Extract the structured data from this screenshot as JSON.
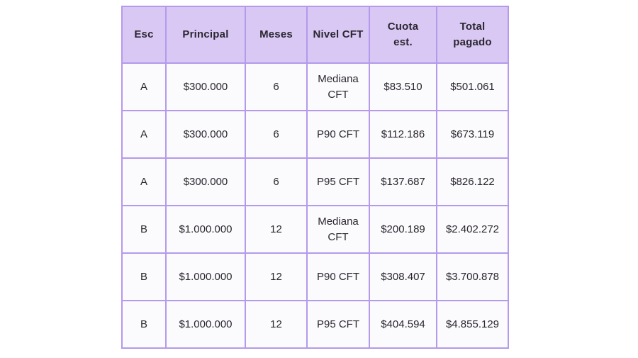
{
  "colors": {
    "header_bg": "#d9c7f4",
    "border": "#b49aec",
    "cell_bg": "#fbfafc",
    "text": "#2b2730",
    "page_bg": "#ffffff"
  },
  "table": {
    "display_headers": [
      "Esc",
      "Principal",
      "Meses",
      "Nivel CFT",
      "Cuota\nest.",
      "Total\npagado"
    ]
  },
  "chart_data": {
    "type": "table",
    "columns": [
      "Esc",
      "Principal",
      "Meses",
      "Nivel CFT",
      "Cuota est.",
      "Total pagado"
    ],
    "rows": [
      [
        "A",
        "$300.000",
        "6",
        "Mediana CFT",
        "$83.510",
        "$501.061"
      ],
      [
        "A",
        "$300.000",
        "6",
        "P90 CFT",
        "$112.186",
        "$673.119"
      ],
      [
        "A",
        "$300.000",
        "6",
        "P95 CFT",
        "$137.687",
        "$826.122"
      ],
      [
        "B",
        "$1.000.000",
        "12",
        "Mediana CFT",
        "$200.189",
        "$2.402.272"
      ],
      [
        "B",
        "$1.000.000",
        "12",
        "P90 CFT",
        "$308.407",
        "$3.700.878"
      ],
      [
        "B",
        "$1.000.000",
        "12",
        "P95 CFT",
        "$404.594",
        "$4.855.129"
      ]
    ]
  }
}
